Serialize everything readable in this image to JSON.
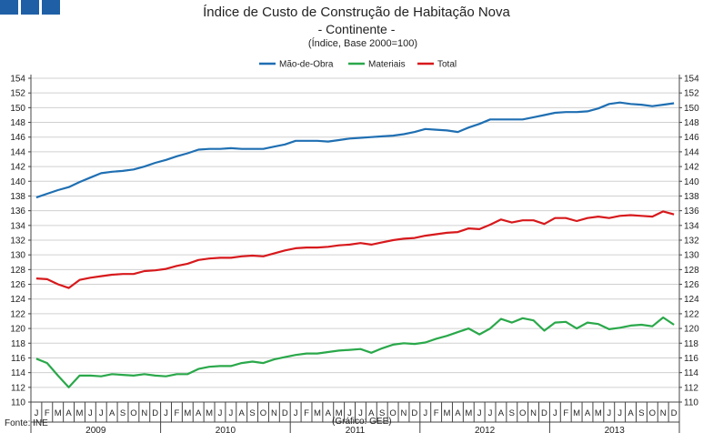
{
  "header": {
    "title": "Índice de Custo de Construção de Habitação Nova",
    "subtitle": "- Continente -",
    "unit": "(Índice, Base 2000=100)",
    "brand_color": "#1f5fa6"
  },
  "footer": {
    "source": "Fonte: INE",
    "credit": "(Gráfico: GEE)"
  },
  "chart_data": {
    "type": "line",
    "title": "Índice de Custo de Construção de Habitação Nova",
    "subtitle": "- Continente -",
    "ylabel": "(Índice, Base 2000=100)",
    "ylim": [
      110,
      154
    ],
    "ytick_step": 2,
    "y_ticks": [
      "110",
      "112",
      "114",
      "116",
      "118",
      "120",
      "122",
      "124",
      "126",
      "128",
      "130",
      "132",
      "134",
      "136",
      "138",
      "140",
      "142",
      "144",
      "146",
      "148",
      "150",
      "152",
      "154"
    ],
    "grid": true,
    "legend_position": "top-center",
    "month_labels": [
      "J",
      "F",
      "M",
      "A",
      "M",
      "J",
      "J",
      "A",
      "S",
      "O",
      "N",
      "D"
    ],
    "years": [
      "2009",
      "2010",
      "2011",
      "2012",
      "2013"
    ],
    "series": [
      {
        "name": "Mão-de-Obra",
        "color": "#1f6fb2",
        "values": [
          137.8,
          138.3,
          138.8,
          139.2,
          139.9,
          140.5,
          141.1,
          141.3,
          141.4,
          141.6,
          142.0,
          142.5,
          142.9,
          143.4,
          143.8,
          144.3,
          144.4,
          144.4,
          144.5,
          144.4,
          144.4,
          144.4,
          144.7,
          145.0,
          145.5,
          145.5,
          145.5,
          145.4,
          145.6,
          145.8,
          145.9,
          146.0,
          146.1,
          146.2,
          146.4,
          146.7,
          147.1,
          147.0,
          146.9,
          146.7,
          147.3,
          147.8,
          148.4,
          148.4,
          148.4,
          148.4,
          148.7,
          149.0,
          149.3,
          149.4,
          149.4,
          149.5,
          149.9,
          150.5,
          150.7,
          150.5,
          150.4,
          150.2,
          150.4,
          150.6
        ]
      },
      {
        "name": "Materiais",
        "color": "#2aa84a",
        "values": [
          115.9,
          115.3,
          113.6,
          112.0,
          113.6,
          113.6,
          113.5,
          113.8,
          113.7,
          113.6,
          113.8,
          113.6,
          113.5,
          113.8,
          113.8,
          114.5,
          114.8,
          114.9,
          114.9,
          115.3,
          115.5,
          115.3,
          115.8,
          116.1,
          116.4,
          116.6,
          116.6,
          116.8,
          117.0,
          117.1,
          117.2,
          116.7,
          117.3,
          117.8,
          118.0,
          117.9,
          118.1,
          118.6,
          119.0,
          119.5,
          120.0,
          119.2,
          120.0,
          121.3,
          120.8,
          121.4,
          121.1,
          119.7,
          120.8,
          120.9,
          120.0,
          120.8,
          120.6,
          119.9,
          120.1,
          120.4,
          120.5,
          120.3,
          121.5,
          120.5
        ]
      },
      {
        "name": "Total",
        "color": "#d7191c",
        "values": [
          126.8,
          126.7,
          126.0,
          125.5,
          126.6,
          126.9,
          127.1,
          127.3,
          127.4,
          127.4,
          127.8,
          127.9,
          128.1,
          128.5,
          128.8,
          129.3,
          129.5,
          129.6,
          129.6,
          129.8,
          129.9,
          129.8,
          130.2,
          130.6,
          130.9,
          131.0,
          131.0,
          131.1,
          131.3,
          131.4,
          131.6,
          131.4,
          131.7,
          132.0,
          132.2,
          132.3,
          132.6,
          132.8,
          133.0,
          133.1,
          133.6,
          133.5,
          134.1,
          134.8,
          134.4,
          134.7,
          134.7,
          134.2,
          135.0,
          135.0,
          134.6,
          135.0,
          135.2,
          135.0,
          135.3,
          135.4,
          135.3,
          135.2,
          135.9,
          135.5
        ]
      }
    ]
  }
}
